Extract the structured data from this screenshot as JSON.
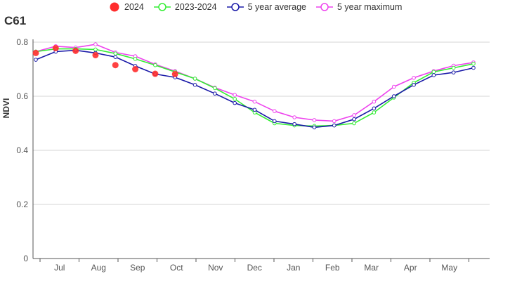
{
  "chart_data": {
    "type": "line",
    "title": "C61",
    "ylabel": "NDVI",
    "xlabel": "",
    "ylim": [
      0,
      0.8
    ],
    "yticks": [
      "0",
      "0.2",
      "0.4",
      "0.6",
      "0.8"
    ],
    "months": [
      "Jul",
      "Aug",
      "Sep",
      "Oct",
      "Nov",
      "Dec",
      "Jan",
      "Feb",
      "Mar",
      "Apr",
      "May"
    ],
    "grid": true,
    "legend_position": "top",
    "colors": {
      "s2024": "#ff2d2d",
      "s2023": "#33ee33",
      "avg": "#1a1aa8",
      "max": "#ee44ee",
      "grid": "#d6d6d6",
      "axis": "#555555"
    },
    "series": [
      {
        "name": "2024",
        "style": "dots",
        "values": [
          0.76,
          0.778,
          0.768,
          0.752,
          0.715,
          0.7,
          0.683,
          0.682
        ]
      },
      {
        "name": "2023-2024",
        "style": "line",
        "values": [
          0.765,
          0.775,
          0.775,
          0.773,
          0.758,
          0.738,
          0.715,
          0.69,
          0.665,
          0.63,
          0.59,
          0.54,
          0.5,
          0.492,
          0.49,
          0.492,
          0.5,
          0.54,
          0.595,
          0.65,
          0.69,
          0.705,
          0.72
        ]
      },
      {
        "name": "5 year average",
        "style": "line",
        "values": [
          0.735,
          0.765,
          0.77,
          0.76,
          0.745,
          0.712,
          0.682,
          0.67,
          0.642,
          0.61,
          0.575,
          0.55,
          0.508,
          0.497,
          0.485,
          0.492,
          0.515,
          0.555,
          0.6,
          0.642,
          0.678,
          0.688,
          0.705
        ]
      },
      {
        "name": "5 year maximum",
        "style": "line",
        "values": [
          0.765,
          0.785,
          0.78,
          0.792,
          0.762,
          0.748,
          0.718,
          0.693,
          0.665,
          0.632,
          0.605,
          0.58,
          0.545,
          0.522,
          0.512,
          0.508,
          0.53,
          0.58,
          0.635,
          0.668,
          0.693,
          0.713,
          0.725
        ]
      }
    ]
  }
}
